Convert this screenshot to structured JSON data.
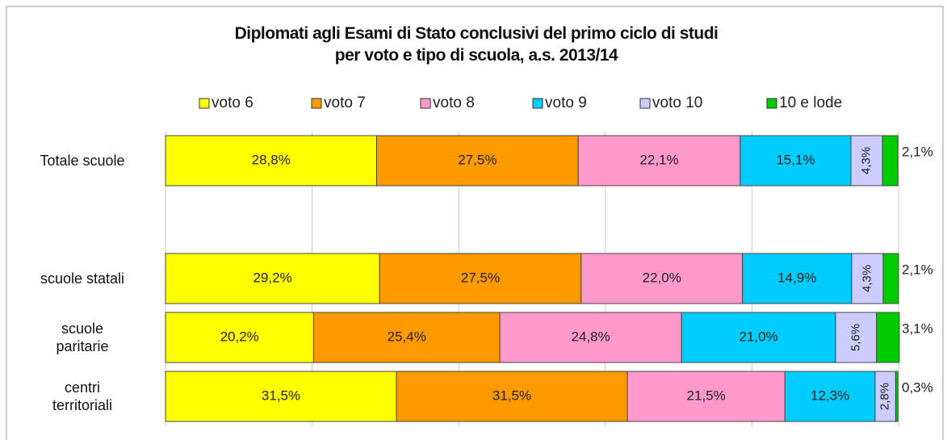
{
  "chart_data": {
    "type": "stacked_bar_horizontal",
    "title": "Diplomati agli Esami di Stato conclusivi del primo ciclo di studi\nper voto e tipo di scuola, a.s. 2013/14",
    "categories": [
      "Totale scuole",
      null,
      "scuole statali",
      "scuole\nparitarie",
      "centri\nterritoriali"
    ],
    "xlim": [
      0,
      100
    ],
    "xticks": [
      0,
      20,
      40,
      60,
      80,
      100
    ],
    "grid": true,
    "legend": "top",
    "series": [
      {
        "name": "voto 6",
        "color": "#ffff00",
        "values": [
          28.8,
          null,
          29.2,
          20.2,
          31.5
        ],
        "value_labels": [
          "28,8%",
          null,
          "29,2%",
          "20,2%",
          "31,5%"
        ]
      },
      {
        "name": "voto 7",
        "color": "#ff9900",
        "values": [
          27.5,
          null,
          27.5,
          25.4,
          31.5
        ],
        "value_labels": [
          "27,5%",
          null,
          "27,5%",
          "25,4%",
          "31,5%"
        ]
      },
      {
        "name": "voto 8",
        "color": "#ff99cc",
        "values": [
          22.1,
          null,
          22.0,
          24.8,
          21.5
        ],
        "value_labels": [
          "22,1%",
          null,
          "22,0%",
          "24,8%",
          "21,5%"
        ]
      },
      {
        "name": "voto 9",
        "color": "#00ccff",
        "values": [
          15.1,
          null,
          14.9,
          21.0,
          12.3
        ],
        "value_labels": [
          "15,1%",
          null,
          "14,9%",
          "21,0%",
          "12,3%"
        ]
      },
      {
        "name": "voto 10",
        "color": "#ccccff",
        "values": [
          4.3,
          null,
          4.3,
          5.6,
          2.8
        ],
        "value_labels": [
          "4,3%",
          null,
          "4,3%",
          "5,6%",
          "2,8%"
        ]
      },
      {
        "name": "10 e lode",
        "color": "#00cc00",
        "values": [
          2.1,
          null,
          2.1,
          3.1,
          0.3
        ],
        "value_labels": [
          "2,1%",
          null,
          "2,1%",
          "3,1%",
          "0,3%"
        ]
      }
    ]
  }
}
